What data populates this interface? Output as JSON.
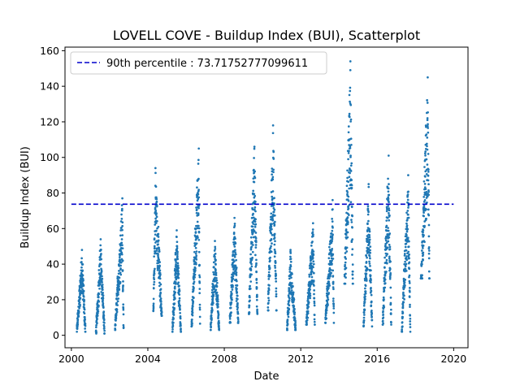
{
  "chart_data": {
    "type": "scatter",
    "title": "LOVELL COVE - Buildup Index (BUI), Scatterplot",
    "xlabel": "Date",
    "ylabel": "Buildup Index (BUI)",
    "xlim": [
      "1999-09-01",
      "2020-10-01"
    ],
    "ylim": [
      -7,
      162
    ],
    "xticks": [
      {
        "date": "2000-01-01",
        "label": "2000"
      },
      {
        "date": "2004-01-01",
        "label": "2004"
      },
      {
        "date": "2008-01-01",
        "label": "2008"
      },
      {
        "date": "2012-01-01",
        "label": "2012"
      },
      {
        "date": "2016-01-01",
        "label": "2016"
      },
      {
        "date": "2020-01-01",
        "label": "2020"
      }
    ],
    "yticks": [
      0,
      20,
      40,
      60,
      80,
      100,
      120,
      140,
      160
    ],
    "point_color": "#1f77b4",
    "series": [
      {
        "seasons": [
          {
            "start": "2000-04-15",
            "end": "2000-09-25",
            "min": 2,
            "max": 48,
            "peak": 0.6
          },
          {
            "start": "2001-04-15",
            "end": "2001-09-25",
            "min": 1,
            "max": 54,
            "peak": 0.55
          },
          {
            "start": "2002-04-15",
            "end": "2002-09-25",
            "min": 3,
            "max": 77,
            "peak": 0.85
          },
          {
            "start": "2004-04-15",
            "end": "2004-09-25",
            "min": 11,
            "max": 94,
            "peak": 0.25
          },
          {
            "start": "2005-04-15",
            "end": "2005-09-25",
            "min": 2,
            "max": 59,
            "peak": 0.5
          },
          {
            "start": "2006-04-15",
            "end": "2006-09-25",
            "min": 5,
            "max": 105,
            "peak": 0.85
          },
          {
            "start": "2007-04-15",
            "end": "2007-09-25",
            "min": 3,
            "max": 53,
            "peak": 0.5
          },
          {
            "start": "2008-04-15",
            "end": "2008-09-25",
            "min": 7,
            "max": 66,
            "peak": 0.55
          },
          {
            "start": "2009-04-15",
            "end": "2009-09-25",
            "min": 12,
            "max": 106,
            "peak": 0.65
          },
          {
            "start": "2010-04-15",
            "end": "2010-09-25",
            "min": 14,
            "max": 118,
            "peak": 0.6
          },
          {
            "start": "2011-04-15",
            "end": "2011-09-25",
            "min": 3,
            "max": 48,
            "peak": 0.4
          },
          {
            "start": "2012-04-15",
            "end": "2012-09-25",
            "min": 6,
            "max": 63,
            "peak": 0.8
          },
          {
            "start": "2013-04-15",
            "end": "2013-09-25",
            "min": 7,
            "max": 76,
            "peak": 0.85
          },
          {
            "start": "2014-04-15",
            "end": "2014-09-25",
            "min": 29,
            "max": 154,
            "peak": 0.7
          },
          {
            "start": "2015-04-15",
            "end": "2015-09-25",
            "min": 5,
            "max": 85,
            "peak": 0.6
          },
          {
            "start": "2016-04-15",
            "end": "2016-09-25",
            "min": 6,
            "max": 101,
            "peak": 0.7
          },
          {
            "start": "2017-04-15",
            "end": "2017-09-25",
            "min": 2,
            "max": 90,
            "peak": 0.75
          },
          {
            "start": "2018-04-15",
            "end": "2018-09-25",
            "min": 32,
            "max": 145,
            "peak": 0.8
          }
        ]
      }
    ],
    "reference_line": {
      "label": "90th percentile : 73.71752777099611",
      "y": 73.71752777099611,
      "x_range": [
        "2000-01-01",
        "2020-01-01"
      ],
      "color": "#0000cc",
      "style": "dashed"
    },
    "legend": {
      "position": "top-left"
    },
    "grid": false
  }
}
